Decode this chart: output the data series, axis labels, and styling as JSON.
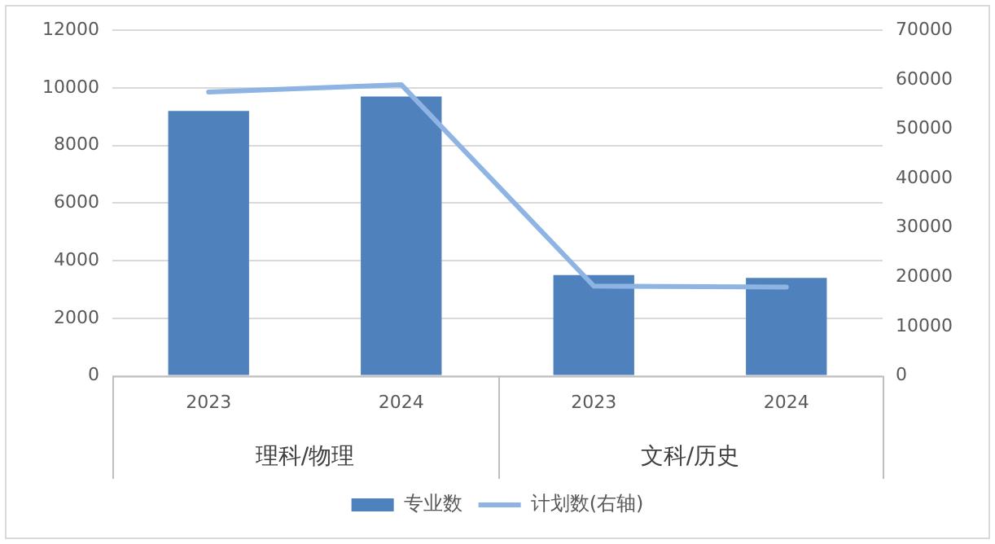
{
  "chart_data": {
    "type": "bar",
    "categories": [
      "2023",
      "2024",
      "2023",
      "2024"
    ],
    "series": [
      {
        "name": "专业数",
        "color": "#4f81bd",
        "values": [
          9200,
          9700,
          3500,
          3400
        ]
      },
      {
        "name": "计划数(右轴)",
        "type": "line",
        "axis": "y2",
        "color": "#8eb4e3",
        "values": [
          57500,
          59000,
          18200,
          18000
        ]
      }
    ],
    "annotations": [
      "理科/物理",
      "文科/历史"
    ],
    "ylim": [
      0,
      12000
    ],
    "yticks": [
      0,
      2000,
      4000,
      6000,
      8000,
      10000,
      12000
    ],
    "y2lim": [
      0,
      70000
    ],
    "y2ticks": [
      0,
      10000,
      20000,
      30000,
      40000,
      50000,
      60000,
      70000
    ],
    "grid": "y",
    "legend": "bottom",
    "marker": "none",
    "line_style": "solid"
  }
}
